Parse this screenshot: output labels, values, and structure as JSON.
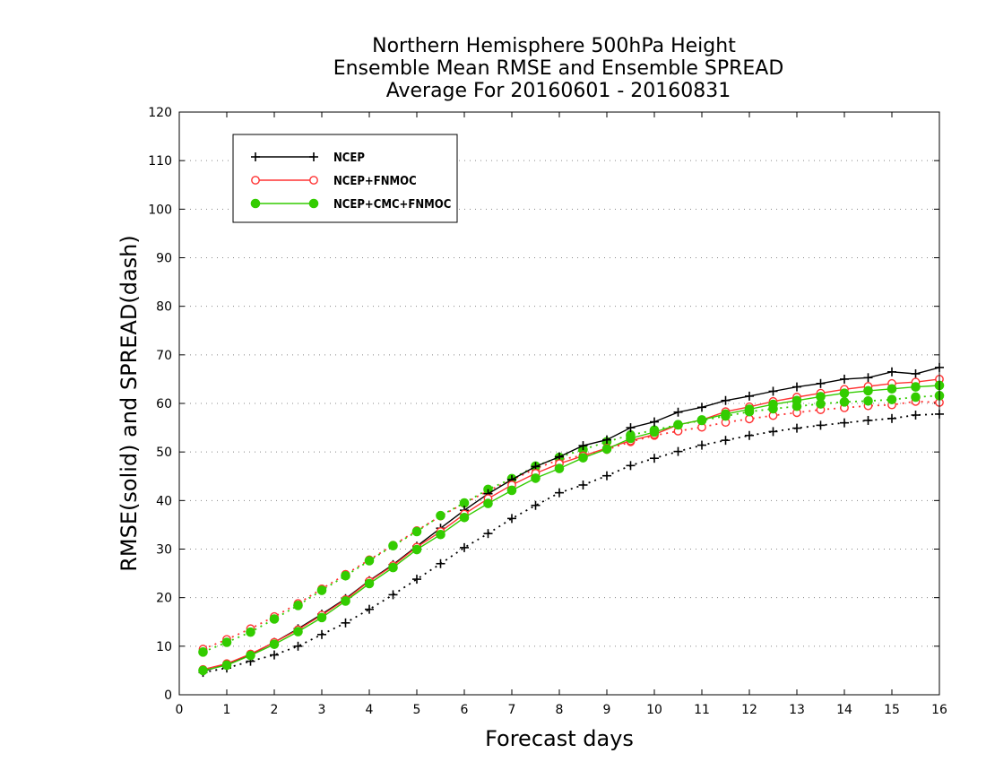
{
  "chart_data": {
    "type": "line",
    "title": [
      "Northern Hemisphere 500hPa Height",
      "Ensemble Mean RMSE and Ensemble SPREAD",
      "Average For 20160601 - 20160831"
    ],
    "xlabel": "Forecast days",
    "ylabel": "RMSE(solid) and SPREAD(dash)",
    "xlim": [
      0,
      16
    ],
    "ylim": [
      0,
      120
    ],
    "xticks": [
      0,
      1,
      2,
      3,
      4,
      5,
      6,
      7,
      8,
      9,
      10,
      11,
      12,
      13,
      14,
      15,
      16
    ],
    "yticks": [
      0,
      10,
      20,
      30,
      40,
      50,
      60,
      70,
      80,
      90,
      100,
      110,
      120
    ],
    "grid": "horizontal dotted",
    "legend_position": "top-left",
    "x": [
      0.5,
      1,
      1.5,
      2,
      2.5,
      3,
      3.5,
      4,
      4.5,
      5,
      5.5,
      6,
      6.5,
      7,
      7.5,
      8,
      8.5,
      9,
      9.5,
      10,
      10.5,
      11,
      11.5,
      12,
      12.5,
      13,
      13.5,
      14,
      14.5,
      15,
      15.5,
      16
    ],
    "series": [
      {
        "name": "NCEP",
        "color": "#000000",
        "marker": "plus",
        "rmse": [
          4.8,
          6.3,
          8.3,
          10.8,
          13.6,
          16.6,
          19.8,
          23.5,
          26.8,
          30.6,
          34.3,
          38.0,
          41.4,
          44.3,
          47.0,
          49.0,
          51.3,
          52.5,
          55.0,
          56.2,
          58.2,
          59.2,
          60.6,
          61.5,
          62.5,
          63.4,
          64.1,
          65.0,
          65.3,
          66.5,
          66.1,
          67.4
        ],
        "spread": [
          4.6,
          5.5,
          6.9,
          8.2,
          10.0,
          12.4,
          14.8,
          17.6,
          20.6,
          23.8,
          27.0,
          30.3,
          33.2,
          36.3,
          39.0,
          41.6,
          43.2,
          45.1,
          47.2,
          48.7,
          50.1,
          51.4,
          52.4,
          53.4,
          54.2,
          54.9,
          55.5,
          56.0,
          56.5,
          56.9,
          57.6,
          57.8
        ]
      },
      {
        "name": "NCEP+FNMOC",
        "color": "#ff3333",
        "marker": "open-circle",
        "rmse": [
          5.2,
          6.4,
          8.4,
          10.8,
          13.4,
          16.4,
          19.6,
          23.4,
          26.6,
          30.4,
          33.6,
          37.2,
          40.4,
          43.2,
          45.6,
          47.6,
          49.2,
          50.8,
          52.3,
          53.6,
          55.6,
          56.6,
          58.3,
          59.3,
          60.4,
          61.3,
          62.1,
          62.9,
          63.5,
          64.1,
          64.4,
          65.0
        ],
        "spread": [
          9.4,
          11.4,
          13.6,
          16.1,
          18.8,
          21.8,
          24.8,
          27.8,
          30.8,
          33.8,
          36.8,
          39.4,
          42.0,
          44.2,
          46.6,
          48.4,
          49.3,
          50.5,
          52.1,
          53.4,
          54.3,
          55.1,
          56.1,
          56.8,
          57.5,
          58.1,
          58.7,
          59.1,
          59.5,
          59.7,
          60.4,
          60.2
        ]
      },
      {
        "name": "NCEP+CMC+FNMOC",
        "color": "#33cc00",
        "marker": "filled-circle",
        "rmse": [
          5.0,
          6.1,
          8.1,
          10.4,
          13.0,
          15.9,
          19.3,
          22.9,
          26.2,
          29.9,
          33.0,
          36.5,
          39.4,
          42.1,
          44.6,
          46.6,
          48.8,
          50.6,
          52.8,
          54.1,
          55.6,
          56.6,
          57.8,
          58.8,
          59.8,
          60.6,
          61.4,
          62.1,
          62.6,
          63.0,
          63.4,
          63.7
        ],
        "spread": [
          8.8,
          10.8,
          12.9,
          15.6,
          18.4,
          21.5,
          24.5,
          27.6,
          30.7,
          33.6,
          36.9,
          39.5,
          42.3,
          44.5,
          47.1,
          48.9,
          50.5,
          52.1,
          53.5,
          54.5,
          55.6,
          56.5,
          57.4,
          58.3,
          58.9,
          59.4,
          59.9,
          60.3,
          60.5,
          60.8,
          61.3,
          61.6
        ]
      }
    ]
  }
}
